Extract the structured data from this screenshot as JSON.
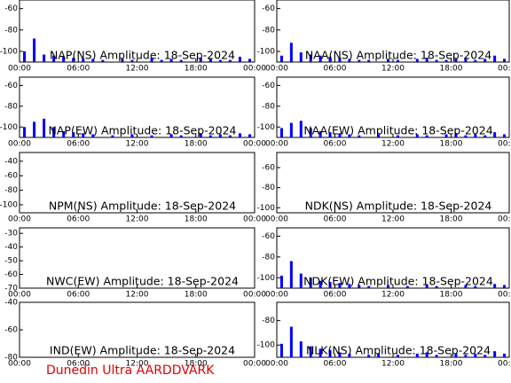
{
  "chart_data": [
    {
      "type": "bar",
      "title": "NAP(NS) Amplitude: 18-Sep-2024",
      "color": "#0000ff",
      "x": [
        0.5,
        1.5,
        2.5,
        3.5,
        4.5,
        5.5,
        6.5,
        7.5,
        8.5,
        9.5,
        10.5,
        11.5,
        12.5,
        13.5,
        14.5,
        15.5,
        16.5,
        17.5,
        18.5,
        19.5,
        20.5,
        21.5,
        22.5,
        23.5
      ],
      "values": [
        -100,
        -88,
        -103,
        -104,
        -105,
        -106,
        -107,
        -107,
        -108,
        null,
        -107,
        -108,
        null,
        -106,
        -108,
        -107,
        -108,
        null,
        -106,
        -107,
        -108,
        -108,
        -105,
        -107
      ],
      "xlim": [
        0,
        24
      ],
      "xticks": [
        {
          "value": 0,
          "label": "00:00"
        },
        {
          "value": 6,
          "label": "06:00"
        },
        {
          "value": 12,
          "label": "12:00"
        },
        {
          "value": 18,
          "label": "18:00"
        },
        {
          "value": 24,
          "label": "00:00"
        }
      ],
      "ylim": [
        -110,
        -52
      ],
      "yticks": [
        -100,
        -80,
        -60
      ]
    },
    {
      "type": "bar",
      "title": "NAA(NS) Amplitude: 18-Sep-2024",
      "color": "#0000ff",
      "x": [
        0.5,
        1.5,
        2.5,
        3.5,
        4.5,
        5.5,
        6.5,
        7.5,
        8.5,
        9.5,
        10.5,
        11.5,
        12.5,
        13.5,
        14.5,
        15.5,
        16.5,
        17.5,
        18.5,
        19.5,
        20.5,
        21.5,
        22.5,
        23.5
      ],
      "values": [
        -104,
        -92,
        -101,
        -103,
        -104,
        -105,
        -106,
        -107,
        -108,
        -108,
        null,
        -107,
        -108,
        null,
        -107,
        -106,
        -108,
        -108,
        -107,
        -106,
        -108,
        -107,
        -104,
        -107
      ],
      "xlim": [
        0,
        24
      ],
      "xticks": [
        {
          "value": 0,
          "label": "00:00"
        },
        {
          "value": 6,
          "label": "06:00"
        },
        {
          "value": 12,
          "label": "12:00"
        },
        {
          "value": 18,
          "label": "18:00"
        },
        {
          "value": 24,
          "label": "00:00"
        }
      ],
      "ylim": [
        -110,
        -52
      ],
      "yticks": [
        -100,
        -80,
        -60
      ]
    },
    {
      "type": "bar",
      "title": "NAP(EW) Amplitude: 18-Sep-2024",
      "color": "#0000ff",
      "x": [
        0.5,
        1.5,
        2.5,
        3.5,
        4.5,
        5.5,
        6.5,
        7.5,
        8.5,
        9.5,
        10.5,
        11.5,
        12.5,
        13.5,
        14.5,
        15.5,
        16.5,
        17.5,
        18.5,
        19.5,
        20.5,
        21.5,
        22.5,
        23.5
      ],
      "values": [
        -100,
        -95,
        -92,
        -100,
        -104,
        -105,
        -106,
        -107,
        null,
        -108,
        null,
        -107,
        null,
        -108,
        null,
        -107,
        -108,
        null,
        -106,
        -108,
        -107,
        -108,
        -106,
        -107
      ],
      "xlim": [
        0,
        24
      ],
      "xticks": [
        {
          "value": 0,
          "label": "00:00"
        },
        {
          "value": 6,
          "label": "06:00"
        },
        {
          "value": 12,
          "label": "12:00"
        },
        {
          "value": 18,
          "label": "18:00"
        },
        {
          "value": 24,
          "label": "00:00"
        }
      ],
      "ylim": [
        -110,
        -52
      ],
      "yticks": [
        -100,
        -80,
        -60
      ]
    },
    {
      "type": "bar",
      "title": "NAA(EW) Amplitude: 18-Sep-2024",
      "color": "#0000ff",
      "x": [
        0.5,
        1.5,
        2.5,
        3.5,
        4.5,
        5.5,
        6.5,
        7.5,
        8.5,
        9.5,
        10.5,
        11.5,
        12.5,
        13.5,
        14.5,
        15.5,
        16.5,
        17.5,
        18.5,
        19.5,
        20.5,
        21.5,
        22.5,
        23.5
      ],
      "values": [
        -101,
        -96,
        -94,
        -101,
        -104,
        -105,
        -106,
        -107,
        -108,
        null,
        -107,
        null,
        -108,
        null,
        -107,
        -108,
        null,
        -107,
        -106,
        -108,
        -107,
        -108,
        -105,
        -107
      ],
      "xlim": [
        0,
        24
      ],
      "xticks": [
        {
          "value": 0,
          "label": "00:00"
        },
        {
          "value": 6,
          "label": "06:00"
        },
        {
          "value": 12,
          "label": "12:00"
        },
        {
          "value": 18,
          "label": "18:00"
        },
        {
          "value": 24,
          "label": "00:00"
        }
      ],
      "ylim": [
        -110,
        -52
      ],
      "yticks": [
        -100,
        -80,
        -60
      ]
    },
    {
      "type": "bar",
      "title": "NPM(NS) Amplitude: 18-Sep-2024",
      "color": "#0000ff",
      "x": [],
      "values": [],
      "xlim": [
        0,
        24
      ],
      "xticks": [
        {
          "value": 0,
          "label": "00:00"
        },
        {
          "value": 6,
          "label": "06:00"
        },
        {
          "value": 12,
          "label": "12:00"
        },
        {
          "value": 18,
          "label": "18:00"
        },
        {
          "value": 24,
          "label": "00:00"
        }
      ],
      "ylim": [
        -111,
        -28
      ],
      "yticks": [
        -100,
        -80,
        -60,
        -40
      ]
    },
    {
      "type": "bar",
      "title": "NDK(NS) Amplitude: 18-Sep-2024",
      "color": "#0000ff",
      "x": [],
      "values": [],
      "xlim": [
        0,
        24
      ],
      "xticks": [
        {
          "value": 0,
          "label": "00:00"
        },
        {
          "value": 6,
          "label": "06:00"
        },
        {
          "value": 12,
          "label": "12:00"
        },
        {
          "value": 18,
          "label": "18:00"
        },
        {
          "value": 24,
          "label": "00:00"
        }
      ],
      "ylim": [
        -105,
        -45
      ],
      "yticks": [
        -100,
        -80,
        -60
      ]
    },
    {
      "type": "bar",
      "title": "NWC(EW) Amplitude: 18-Sep-2024",
      "color": "#0000ff",
      "x": [],
      "values": [],
      "xlim": [
        0,
        24
      ],
      "xticks": [
        {
          "value": 0,
          "label": "00:00"
        },
        {
          "value": 6,
          "label": "06:00"
        },
        {
          "value": 12,
          "label": "12:00"
        },
        {
          "value": 18,
          "label": "18:00"
        },
        {
          "value": 24,
          "label": "00:00"
        }
      ],
      "ylim": [
        -70,
        -26
      ],
      "yticks": [
        -70,
        -60,
        -50,
        -40,
        -30
      ]
    },
    {
      "type": "bar",
      "title": "NDK(EW) Amplitude: 18-Sep-2024",
      "color": "#0000ff",
      "x": [
        0.5,
        1.5,
        2.5,
        3.5,
        4.5,
        5.5,
        6.5,
        7.5,
        8.5,
        9.5,
        10.5,
        11.5,
        12.5,
        13.5,
        14.5,
        15.5,
        16.5,
        17.5,
        18.5,
        19.5,
        20.5,
        21.5,
        22.5,
        23.5
      ],
      "values": [
        -98,
        -84,
        -96,
        -100,
        -103,
        -104,
        -105,
        -106,
        -107,
        -108,
        null,
        -107,
        null,
        -108,
        null,
        -107,
        -108,
        null,
        null,
        -107,
        -108,
        null,
        -106,
        -107
      ],
      "xlim": [
        0,
        24
      ],
      "xticks": [
        {
          "value": 0,
          "label": "00:00"
        },
        {
          "value": 6,
          "label": "06:00"
        },
        {
          "value": 12,
          "label": "12:00"
        },
        {
          "value": 18,
          "label": "18:00"
        },
        {
          "value": 24,
          "label": "00:00"
        }
      ],
      "ylim": [
        -110,
        -52
      ],
      "yticks": [
        -100,
        -80,
        -60
      ]
    },
    {
      "type": "bar",
      "title": "IND(EW) Amplitude: 18-Sep-2024",
      "color": "#0000ff",
      "x": [],
      "values": [],
      "xlim": [
        0,
        24
      ],
      "xticks": [
        {
          "value": 0,
          "label": "00:00"
        },
        {
          "value": 6,
          "label": "06:00"
        },
        {
          "value": 12,
          "label": "12:00"
        },
        {
          "value": 18,
          "label": "18:00"
        },
        {
          "value": 24,
          "label": "00:00"
        }
      ],
      "ylim": [
        -80,
        -40
      ],
      "yticks": [
        -80,
        -60,
        -40
      ]
    },
    {
      "type": "bar",
      "title": "NLK(NS) Amplitude: 18-Sep-2024",
      "color": "#0000ff",
      "x": [
        0.5,
        1.5,
        2.5,
        3.5,
        4.5,
        5.5,
        6.5,
        7.5,
        8.5,
        9.5,
        10.5,
        11.5,
        12.5,
        13.5,
        14.5,
        15.5,
        16.5,
        17.5,
        18.5,
        19.5,
        20.5,
        21.5,
        22.5,
        23.5
      ],
      "values": [
        -99,
        -85,
        -97,
        -101,
        -103,
        -104,
        -106,
        -107,
        null,
        -108,
        -107,
        null,
        -108,
        null,
        -107,
        -106,
        -108,
        null,
        -107,
        -108,
        -107,
        -108,
        -105,
        -107
      ],
      "xlim": [
        0,
        24
      ],
      "xticks": [
        {
          "value": 0,
          "label": "00:00"
        },
        {
          "value": 6,
          "label": "06:00"
        },
        {
          "value": 12,
          "label": "12:00"
        },
        {
          "value": 18,
          "label": "18:00"
        },
        {
          "value": 24,
          "label": "00:00"
        }
      ],
      "ylim": [
        -110,
        -65
      ],
      "yticks": [
        -100,
        -80
      ]
    }
  ],
  "footer": "Dunedin Ultra AARDDVARK"
}
